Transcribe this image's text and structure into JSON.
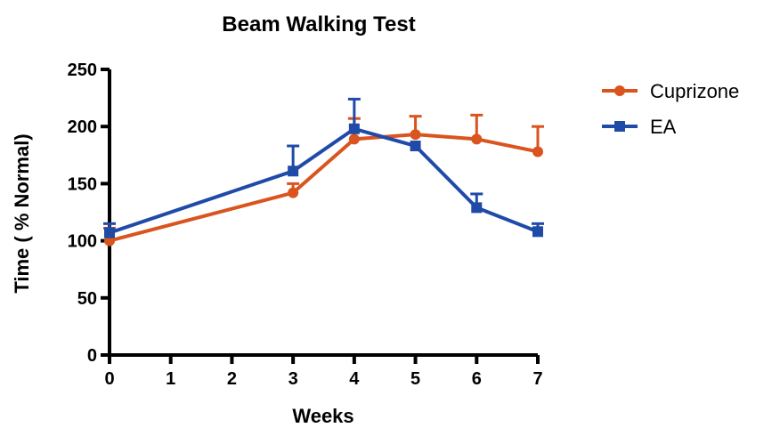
{
  "chart_data": {
    "type": "line",
    "title": "Beam Walking Test",
    "xlabel": "Weeks",
    "ylabel": "Time ( % Normal)",
    "xlim": [
      0,
      7
    ],
    "ylim": [
      0,
      250
    ],
    "x_ticks": [
      0,
      1,
      2,
      3,
      4,
      5,
      6,
      7
    ],
    "y_ticks": [
      0,
      50,
      100,
      150,
      200,
      250
    ],
    "grid": false,
    "legend_position": "right",
    "series": [
      {
        "name": "Cuprizone",
        "color": "#d9541e",
        "marker": "circle",
        "x": [
          0,
          3,
          4,
          5,
          6,
          7
        ],
        "y": [
          100,
          142,
          189,
          193,
          189,
          178
        ],
        "error_upper": [
          111,
          150,
          207,
          209,
          210,
          200
        ]
      },
      {
        "name": "EA",
        "color": "#1f4aa8",
        "marker": "square",
        "x": [
          0,
          3,
          4,
          5,
          6,
          7
        ],
        "y": [
          107,
          161,
          198,
          183,
          129,
          108
        ],
        "error_upper": [
          115,
          183,
          224,
          183,
          141,
          115
        ]
      }
    ]
  }
}
